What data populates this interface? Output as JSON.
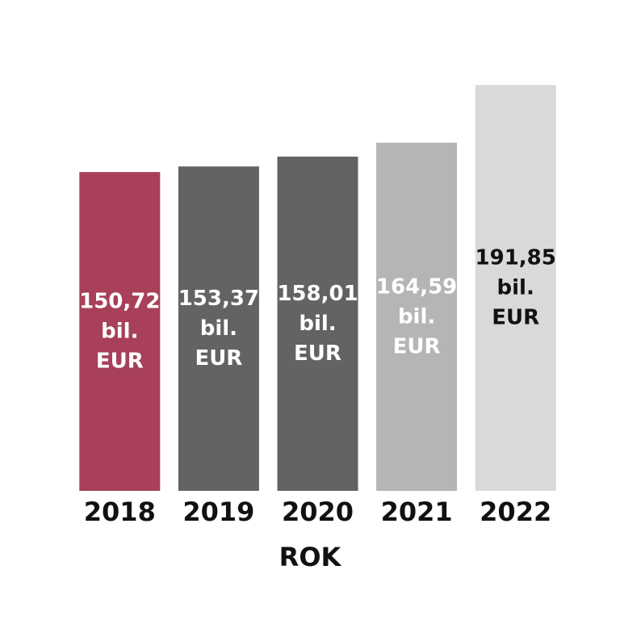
{
  "chart_data": {
    "type": "bar",
    "categories": [
      "2018",
      "2019",
      "2020",
      "2021",
      "2022"
    ],
    "values": [
      150.72,
      153.37,
      158.01,
      164.59,
      191.85
    ],
    "value_labels": [
      "150,72 bil. EUR",
      "153,37 bil. EUR",
      "158,01 bil. EUR",
      "164,59 bil. EUR",
      "191,85 bil. EUR"
    ],
    "colors": [
      "#a8405a",
      "#636363",
      "#636363",
      "#b5b5b5",
      "#d9d9d9"
    ],
    "label_colors": [
      "#ffffff",
      "#ffffff",
      "#ffffff",
      "#ffffff",
      "#111111"
    ],
    "x_label": "ROK",
    "ylim": [
      0,
      200
    ],
    "grid": false
  }
}
